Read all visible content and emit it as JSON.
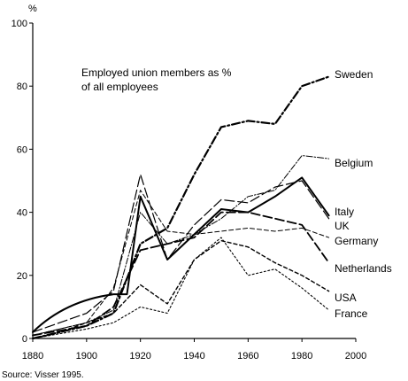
{
  "chart_data": {
    "type": "line",
    "title": "Employed union members as %",
    "title_line2": "of all employees",
    "ylabel": "%",
    "xlabel": "",
    "source": "Source: Visser 1995.",
    "xlim": [
      1880,
      2000
    ],
    "ylim": [
      0,
      100
    ],
    "x_ticks": [
      1880,
      1900,
      1920,
      1940,
      1960,
      1980,
      2000
    ],
    "y_ticks": [
      0,
      20,
      40,
      60,
      80,
      100
    ],
    "grid": false,
    "series": [
      {
        "name": "Sweden",
        "style": "dashdot-bold",
        "points": [
          [
            1880,
            0
          ],
          [
            1900,
            4
          ],
          [
            1910,
            8
          ],
          [
            1920,
            30
          ],
          [
            1930,
            35
          ],
          [
            1940,
            52
          ],
          [
            1950,
            67
          ],
          [
            1960,
            69
          ],
          [
            1970,
            68
          ],
          [
            1980,
            80
          ],
          [
            1990,
            83
          ]
        ]
      },
      {
        "name": "Belgium",
        "style": "dashdot-fine",
        "points": [
          [
            1880,
            1
          ],
          [
            1900,
            5
          ],
          [
            1910,
            9
          ],
          [
            1920,
            40
          ],
          [
            1930,
            30
          ],
          [
            1940,
            33
          ],
          [
            1950,
            38
          ],
          [
            1960,
            45
          ],
          [
            1970,
            47
          ],
          [
            1980,
            58
          ],
          [
            1990,
            57
          ]
        ]
      },
      {
        "name": "Italy",
        "style": "solid",
        "points": [
          [
            1880,
            2
          ],
          [
            1890,
            8
          ],
          [
            1900,
            12
          ],
          [
            1910,
            14
          ],
          [
            1915,
            14
          ],
          [
            1920,
            45
          ],
          [
            1930,
            25
          ],
          [
            1940,
            33
          ],
          [
            1950,
            41
          ],
          [
            1960,
            40
          ],
          [
            1970,
            45
          ],
          [
            1980,
            51
          ],
          [
            1990,
            39
          ]
        ]
      },
      {
        "name": "UK",
        "style": "long-dash",
        "points": [
          [
            1880,
            2
          ],
          [
            1900,
            8
          ],
          [
            1910,
            15
          ],
          [
            1920,
            52
          ],
          [
            1930,
            25
          ],
          [
            1940,
            36
          ],
          [
            1950,
            44
          ],
          [
            1960,
            43
          ],
          [
            1970,
            48
          ],
          [
            1980,
            50
          ],
          [
            1990,
            38
          ]
        ]
      },
      {
        "name": "Germany",
        "style": "short-dash",
        "points": [
          [
            1880,
            1
          ],
          [
            1900,
            5
          ],
          [
            1910,
            16
          ],
          [
            1920,
            47
          ],
          [
            1930,
            34
          ],
          [
            1940,
            33
          ],
          [
            1950,
            34
          ],
          [
            1960,
            35
          ],
          [
            1970,
            34
          ],
          [
            1980,
            35
          ],
          [
            1990,
            32
          ]
        ]
      },
      {
        "name": "Netherlands",
        "style": "dash-bold",
        "points": [
          [
            1880,
            1
          ],
          [
            1900,
            4
          ],
          [
            1910,
            10
          ],
          [
            1920,
            28
          ],
          [
            1930,
            30
          ],
          [
            1940,
            32
          ],
          [
            1950,
            40
          ],
          [
            1960,
            40
          ],
          [
            1970,
            38
          ],
          [
            1980,
            36
          ],
          [
            1990,
            24
          ]
        ]
      },
      {
        "name": "USA",
        "style": "dashed",
        "points": [
          [
            1880,
            0
          ],
          [
            1890,
            2
          ],
          [
            1900,
            5
          ],
          [
            1910,
            8
          ],
          [
            1920,
            17
          ],
          [
            1930,
            11
          ],
          [
            1940,
            25
          ],
          [
            1950,
            31
          ],
          [
            1960,
            29
          ],
          [
            1970,
            24
          ],
          [
            1980,
            20
          ],
          [
            1990,
            15
          ]
        ]
      },
      {
        "name": "France",
        "style": "dotted",
        "points": [
          [
            1880,
            0
          ],
          [
            1900,
            3
          ],
          [
            1910,
            5
          ],
          [
            1920,
            10
          ],
          [
            1930,
            8
          ],
          [
            1940,
            25
          ],
          [
            1950,
            32
          ],
          [
            1960,
            20
          ],
          [
            1970,
            22
          ],
          [
            1980,
            16
          ],
          [
            1990,
            9
          ]
        ]
      }
    ]
  }
}
